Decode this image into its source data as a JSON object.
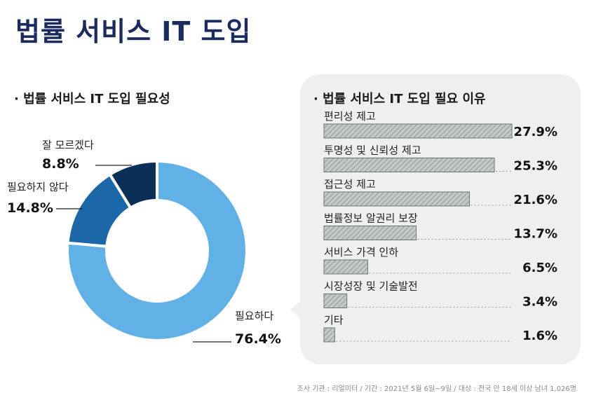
{
  "page": {
    "title": "법률 서비스 IT 도입",
    "source": "조사 기관 : 리얼미터 / 기간 : 2021년 5월 6일~9일 / 대상 : 전국 만 18세 이상 남녀 1,026명"
  },
  "chart_data": [
    {
      "type": "pie",
      "style": "donut",
      "title": "· 법률 서비스 IT 도입 필요성",
      "slices": [
        {
          "label": "필요하다",
          "value": 76.4,
          "value_label": "76.4%",
          "color": "#62b1e6"
        },
        {
          "label": "필요하지 않다",
          "value": 14.8,
          "value_label": "14.8%",
          "color": "#1b67a8"
        },
        {
          "label": "잘 모르겠다",
          "value": 8.8,
          "value_label": "8.8%",
          "color": "#0c2f57"
        }
      ],
      "legend": "none"
    },
    {
      "type": "bar",
      "orientation": "horizontal",
      "title": "· 법률 서비스 IT 도입 필요 이유",
      "categories": [
        "편리성 제고",
        "투명성 및 신뢰성 제고",
        "접근성 제고",
        "법률정보 알권리 보장",
        "서비스 가격 인하",
        "시장성장 및 기술발전",
        "기타"
      ],
      "values": [
        27.9,
        25.3,
        21.6,
        13.7,
        6.5,
        3.4,
        1.6
      ],
      "value_labels": [
        "27.9%",
        "25.3%",
        "21.6%",
        "13.7%",
        "6.5%",
        "3.4%",
        "1.6%"
      ],
      "xlim": [
        0,
        27.9
      ],
      "bar_color": "#bcc3c0",
      "bar_hatch_color": "#7d8784",
      "grid": false
    }
  ]
}
